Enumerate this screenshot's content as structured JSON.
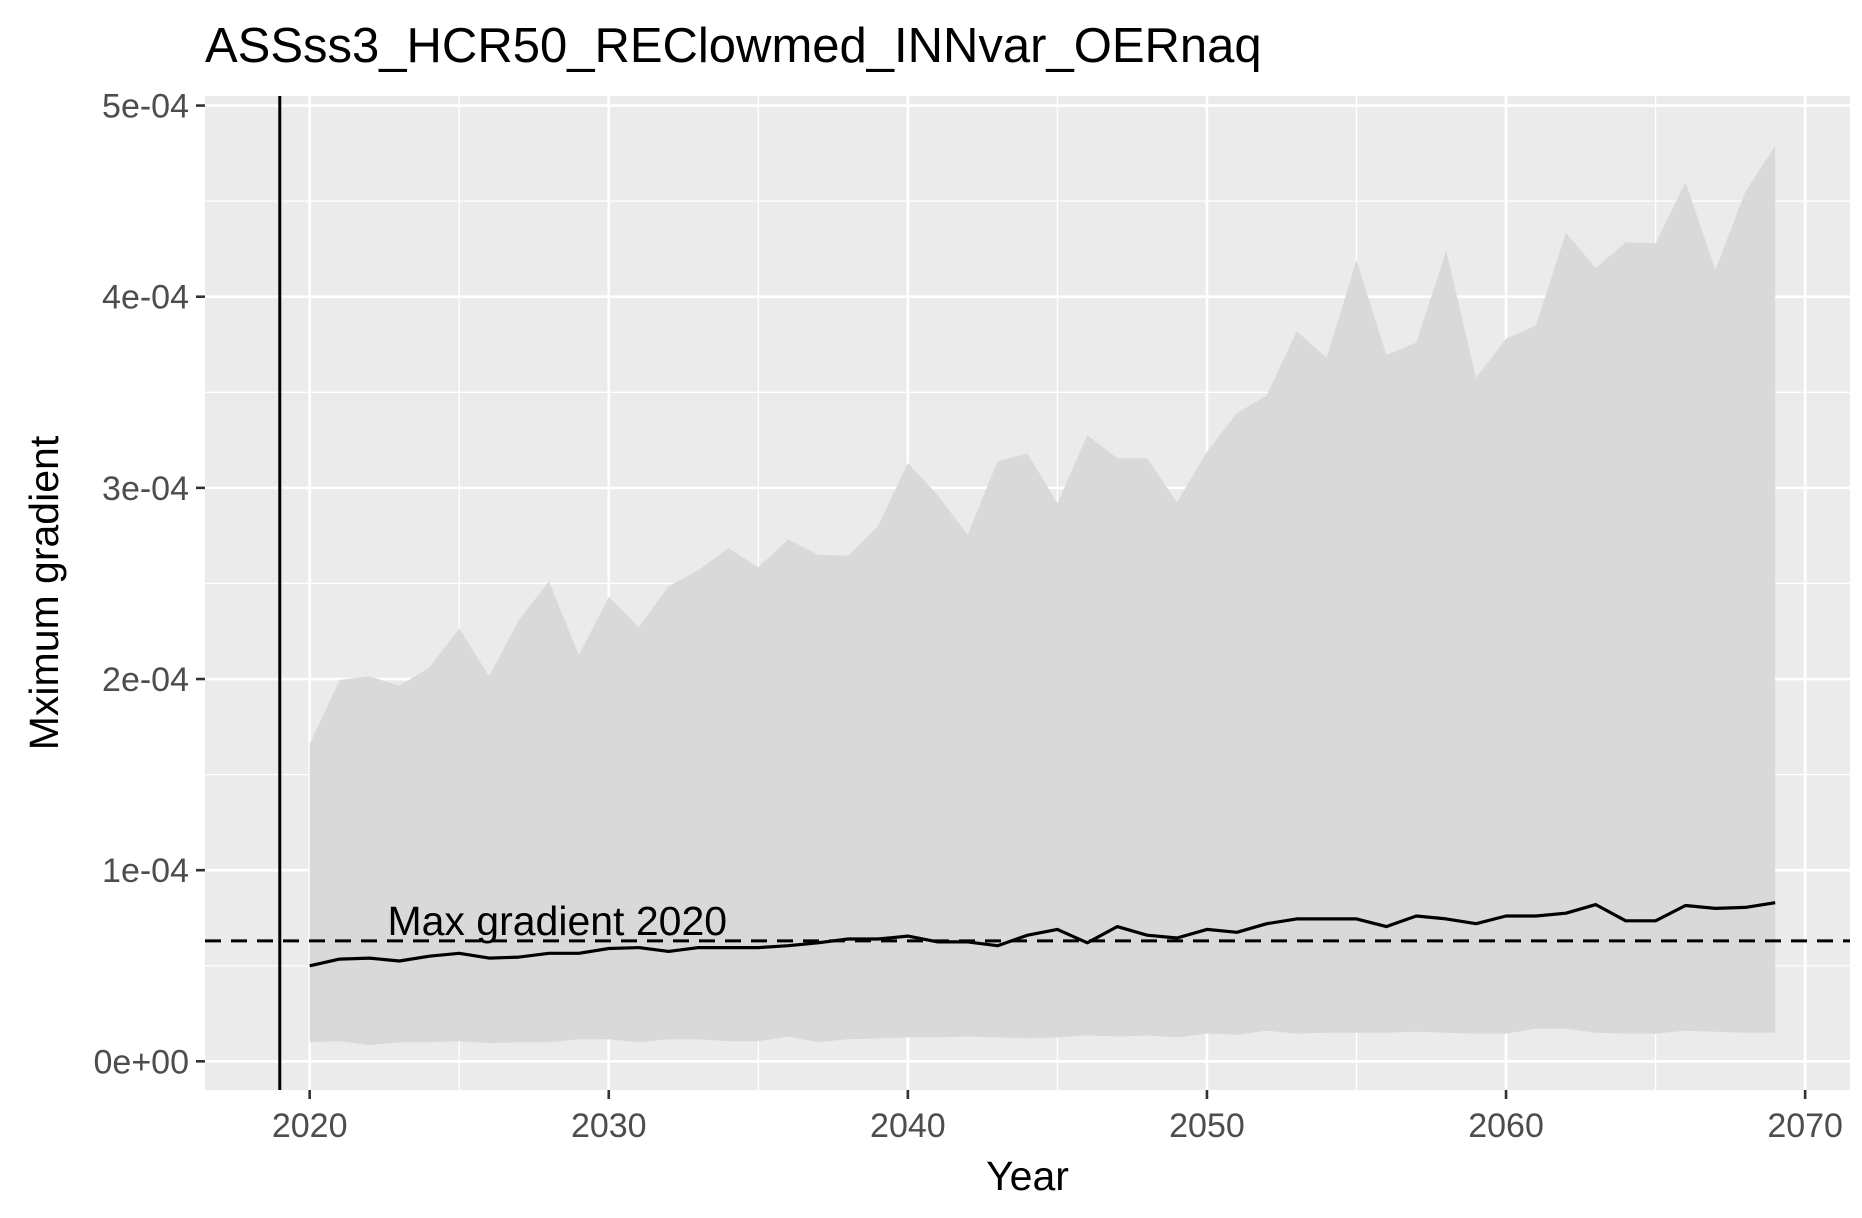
{
  "chart_data": {
    "type": "area",
    "title": "ASSss3_HCR50_REClowmed_INNvar_OERnaq",
    "xlabel": "Year",
    "ylabel": "Mximum gradient",
    "xlim": [
      2016.5,
      2071.5
    ],
    "ylim": [
      -1.5e-05,
      0.000505
    ],
    "x_ticks": [
      2020,
      2030,
      2040,
      2050,
      2060,
      2070
    ],
    "y_ticks": [
      0,
      0.0001,
      0.0002,
      0.0003,
      0.0004,
      0.0005
    ],
    "y_tick_labels": [
      "0e+00",
      "1e-04",
      "2e-04",
      "3e-04",
      "4e-04",
      "5e-04"
    ],
    "grid": true,
    "background": "#ebebeb",
    "band_color": "#d9d9d9",
    "line_color": "#000000",
    "x": [
      2020,
      2021,
      2022,
      2023,
      2024,
      2025,
      2026,
      2027,
      2028,
      2029,
      2030,
      2031,
      2032,
      2033,
      2034,
      2035,
      2036,
      2037,
      2038,
      2039,
      2040,
      2041,
      2042,
      2043,
      2044,
      2045,
      2046,
      2047,
      2048,
      2049,
      2050,
      2051,
      2052,
      2053,
      2054,
      2055,
      2056,
      2057,
      2058,
      2059,
      2060,
      2061,
      2062,
      2063,
      2064,
      2065,
      2066,
      2067,
      2068,
      2069
    ],
    "series": [
      {
        "role": "median",
        "values": [
          5e-05,
          5.35e-05,
          5.4e-05,
          5.25e-05,
          5.5e-05,
          5.65e-05,
          5.4e-05,
          5.45e-05,
          5.65e-05,
          5.65e-05,
          5.9e-05,
          5.95e-05,
          5.75e-05,
          5.95e-05,
          5.95e-05,
          5.95e-05,
          6.05e-05,
          6.2e-05,
          6.4e-05,
          6.4e-05,
          6.55e-05,
          6.25e-05,
          6.25e-05,
          6.05e-05,
          6.6e-05,
          6.9e-05,
          6.2e-05,
          7.05e-05,
          6.6e-05,
          6.45e-05,
          6.9e-05,
          6.75e-05,
          7.2e-05,
          7.45e-05,
          7.45e-05,
          7.45e-05,
          7.05e-05,
          7.6e-05,
          7.45e-05,
          7.2e-05,
          7.6e-05,
          7.6e-05,
          7.75e-05,
          8.2e-05,
          7.35e-05,
          7.35e-05,
          8.15e-05,
          8e-05,
          8.05e-05,
          8.3e-05
        ]
      },
      {
        "role": "lower",
        "values": [
          1e-05,
          1.05e-05,
          8.5e-06,
          1e-05,
          1e-05,
          1.05e-05,
          9.5e-06,
          1e-05,
          1e-05,
          1.15e-05,
          1.15e-05,
          1e-05,
          1.15e-05,
          1.15e-05,
          1.05e-05,
          1.05e-05,
          1.3e-05,
          1e-05,
          1.15e-05,
          1.2e-05,
          1.25e-05,
          1.25e-05,
          1.3e-05,
          1.25e-05,
          1.2e-05,
          1.25e-05,
          1.35e-05,
          1.3e-05,
          1.35e-05,
          1.25e-05,
          1.45e-05,
          1.4e-05,
          1.6e-05,
          1.45e-05,
          1.5e-05,
          1.5e-05,
          1.5e-05,
          1.55e-05,
          1.5e-05,
          1.45e-05,
          1.45e-05,
          1.7e-05,
          1.7e-05,
          1.5e-05,
          1.45e-05,
          1.45e-05,
          1.6e-05,
          1.55e-05,
          1.5e-05,
          1.5e-05
        ]
      },
      {
        "role": "upper",
        "values": [
          0.000166,
          0.0001995,
          0.0002015,
          0.0001965,
          0.000206,
          0.0002265,
          0.0002015,
          0.000231,
          0.000251,
          0.0002125,
          0.000243,
          0.000227,
          0.0002485,
          0.000257,
          0.0002685,
          0.0002585,
          0.000273,
          0.000265,
          0.0002645,
          0.00028,
          0.000313,
          0.000296,
          0.0002755,
          0.000314,
          0.000318,
          0.000292,
          0.0003275,
          0.0003155,
          0.0003155,
          0.0002925,
          0.000319,
          0.000339,
          0.0003485,
          0.000382,
          0.000368,
          0.000419,
          0.0003695,
          0.000376,
          0.000424,
          0.0003575,
          0.000378,
          0.000385,
          0.0004335,
          0.000415,
          0.0004285,
          0.000428,
          0.00046,
          0.000414,
          0.000455,
          0.000479
        ]
      }
    ],
    "reference_lines": [
      {
        "orientation": "vertical",
        "x": 2019,
        "style": "solid"
      },
      {
        "orientation": "horizontal",
        "y": 6.3e-05,
        "style": "dashed"
      }
    ],
    "annotations": [
      {
        "text": "Max gradient 2020",
        "x": 2022.6,
        "y": 6.3e-05
      }
    ]
  }
}
